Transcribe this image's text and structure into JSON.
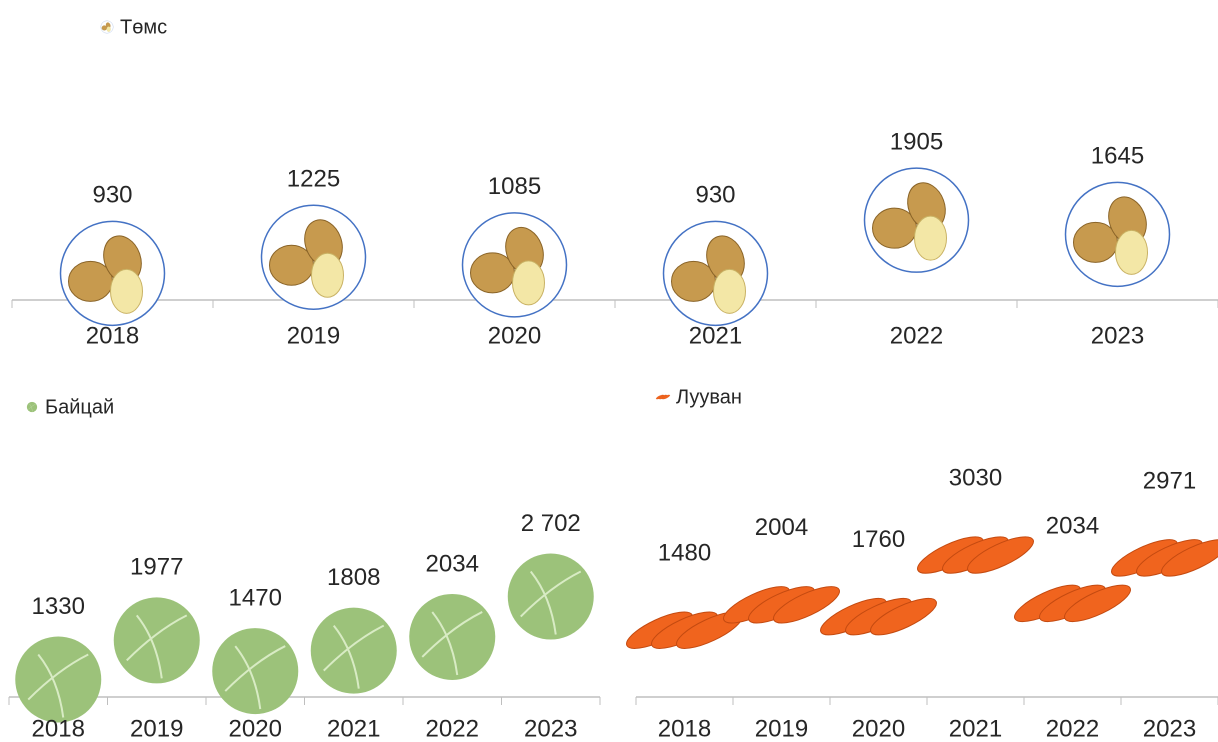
{
  "chart_data": [
    {
      "type": "pictograph",
      "categories": [
        "2018",
        "2019",
        "2020",
        "2021",
        "2022",
        "2023"
      ],
      "series": [
        {
          "name": "Төмс",
          "color": "#c79a4e",
          "values": [
            930,
            1225,
            1085,
            930,
            1905,
            1645
          ]
        }
      ],
      "ylim": [
        0,
        4000
      ]
    },
    {
      "type": "pictograph",
      "categories": [
        "2018",
        "2019",
        "2020",
        "2021",
        "2022",
        "2023"
      ],
      "series": [
        {
          "name": "Байцай",
          "color": "#9cc27a",
          "values": [
            1330,
            1977,
            1470,
            1808,
            2034,
            2702
          ],
          "value_labels": [
            "1330",
            "1977",
            "1470",
            "1808",
            "2034",
            "2 702"
          ]
        }
      ],
      "ylim": [
        0,
        4000
      ]
    },
    {
      "type": "pictograph",
      "categories": [
        "2018",
        "2019",
        "2020",
        "2021",
        "2022",
        "2023"
      ],
      "series": [
        {
          "name": "Лууван",
          "color": "#f0641e",
          "values": [
            1480,
            2004,
            1760,
            3030,
            2034,
            2971
          ]
        }
      ],
      "ylim": [
        0,
        4000
      ]
    }
  ]
}
